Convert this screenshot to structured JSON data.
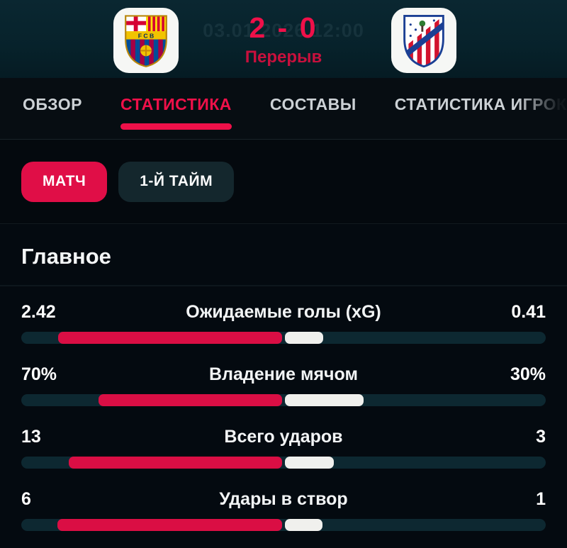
{
  "colors": {
    "accent": "#ef1049",
    "accent_chip": "#e00e47",
    "bar_home": "#da0e44",
    "bar_away": "#f0f0ed",
    "bar_track": "#0d2831",
    "status_red": "#c8103d"
  },
  "header": {
    "home_logo_icon": "fc-barcelona-crest",
    "away_logo_icon": "atletico-madrid-crest",
    "score": "2 - 0",
    "status": "Перерыв",
    "datetime_watermark": "03.01.2026 12:00"
  },
  "tabs": [
    {
      "id": "overview",
      "label": "ОБЗОР",
      "active": false
    },
    {
      "id": "statistics",
      "label": "СТАТИСТИКА",
      "active": true
    },
    {
      "id": "lineups",
      "label": "СОСТАВЫ",
      "active": false
    },
    {
      "id": "player-stats",
      "label": "СТАТИСТИКА ИГРОКОВ",
      "active": false
    }
  ],
  "filters": [
    {
      "id": "match",
      "label": "МАТЧ",
      "active": true
    },
    {
      "id": "first-half",
      "label": "1-Й ТАЙМ",
      "active": false
    }
  ],
  "main": {
    "section_title": "Главное",
    "stats": [
      {
        "label": "Ожидаемые голы (xG)",
        "home": "2.42",
        "away": "0.41",
        "home_value": 2.42,
        "away_value": 0.41
      },
      {
        "label": "Владение мячом",
        "home": "70%",
        "away": "30%",
        "home_value": 70,
        "away_value": 30
      },
      {
        "label": "Всего ударов",
        "home": "13",
        "away": "3",
        "home_value": 13,
        "away_value": 3
      },
      {
        "label": "Удары в створ",
        "home": "6",
        "away": "1",
        "home_value": 6,
        "away_value": 1
      }
    ]
  }
}
